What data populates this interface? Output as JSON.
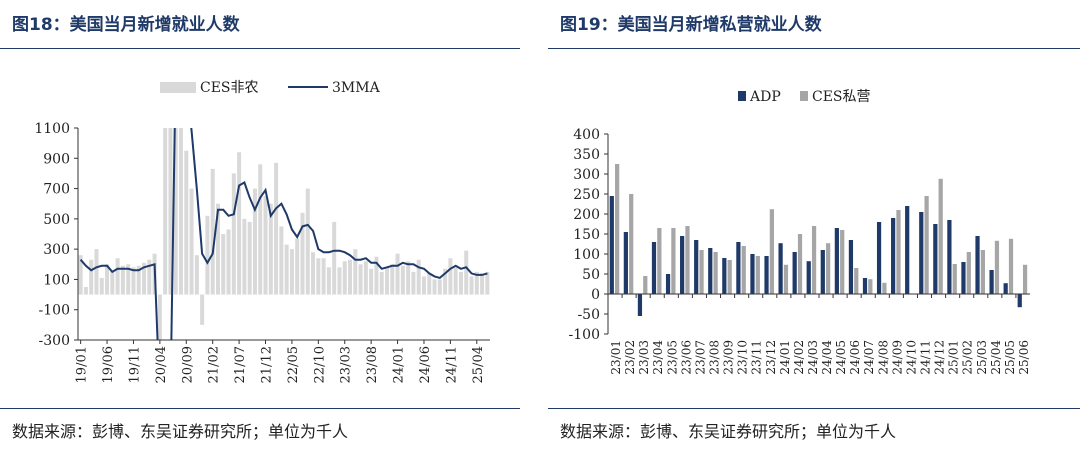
{
  "left": {
    "title": "图18：美国当月新增就业人数",
    "source": "数据来源：彭博、东吴证券研究所；单位为千人",
    "chart_data": {
      "type": "bar",
      "legend_placement": "top",
      "y_range": [
        -300,
        1100
      ],
      "y_ticks": [
        "1100",
        "900",
        "700",
        "500",
        "300",
        "100",
        "-100",
        "-300"
      ],
      "x_tick_labels": [
        "19/01",
        "19/06",
        "19/11",
        "20/04",
        "20/09",
        "21/02",
        "21/07",
        "21/12",
        "22/05",
        "22/10",
        "23/03",
        "23/08",
        "24/01",
        "24/06",
        "24/11",
        "25/04"
      ],
      "categories": [
        "19/01",
        "19/02",
        "19/03",
        "19/04",
        "19/05",
        "19/06",
        "19/07",
        "19/08",
        "19/09",
        "19/10",
        "19/11",
        "19/12",
        "20/01",
        "20/02",
        "20/03",
        "20/04",
        "20/05",
        "20/06",
        "20/07",
        "20/08",
        "20/09",
        "20/10",
        "20/11",
        "20/12",
        "21/01",
        "21/02",
        "21/03",
        "21/04",
        "21/05",
        "21/06",
        "21/07",
        "21/08",
        "21/09",
        "21/10",
        "21/11",
        "21/12",
        "22/01",
        "22/02",
        "22/03",
        "22/04",
        "22/05",
        "22/06",
        "22/07",
        "22/08",
        "22/09",
        "22/10",
        "22/11",
        "22/12",
        "23/01",
        "23/02",
        "23/03",
        "23/04",
        "23/05",
        "23/06",
        "23/07",
        "23/08",
        "23/09",
        "23/10",
        "23/11",
        "23/12",
        "24/01",
        "24/02",
        "24/03",
        "24/04",
        "24/05",
        "24/06",
        "24/07",
        "24/08",
        "24/09",
        "24/10",
        "24/11",
        "24/12",
        "25/01",
        "25/02",
        "25/03",
        "25/04",
        "25/05",
        "25/06"
      ],
      "series": [
        {
          "name": "CES非农",
          "kind": "bar",
          "color": "#d9d9d9",
          "values": [
            260,
            50,
            230,
            300,
            110,
            200,
            160,
            240,
            190,
            200,
            180,
            190,
            210,
            230,
            270,
            -20500,
            2800,
            4600,
            1700,
            1600,
            950,
            700,
            260,
            -200,
            520,
            830,
            600,
            400,
            430,
            800,
            940,
            500,
            480,
            700,
            860,
            650,
            600,
            870,
            450,
            330,
            300,
            370,
            540,
            700,
            280,
            240,
            240,
            180,
            480,
            180,
            220,
            230,
            300,
            200,
            220,
            170,
            250,
            150,
            180,
            200,
            270,
            190,
            220,
            150,
            230,
            120,
            140,
            100,
            100,
            170,
            240,
            180,
            150,
            290,
            120,
            150,
            140,
            150
          ]
        },
        {
          "name": "3MMA",
          "kind": "line",
          "color": "#1f3a68",
          "values": [
            230,
            190,
            160,
            180,
            190,
            190,
            150,
            170,
            170,
            170,
            160,
            160,
            180,
            190,
            200,
            -7400,
            -6300,
            -4400,
            3000,
            2700,
            1420,
            1080,
            700,
            270,
            210,
            270,
            560,
            560,
            520,
            530,
            720,
            740,
            640,
            560,
            640,
            690,
            520,
            570,
            600,
            530,
            430,
            380,
            450,
            460,
            420,
            300,
            280,
            280,
            290,
            290,
            280,
            260,
            230,
            230,
            240,
            210,
            210,
            170,
            180,
            190,
            190,
            210,
            200,
            200,
            180,
            170,
            140,
            120,
            110,
            140,
            170,
            190,
            170,
            180,
            140,
            130,
            130,
            140
          ]
        }
      ]
    }
  },
  "right": {
    "title": "图19：美国当月新增私营就业人数",
    "source": "数据来源：彭博、东吴证券研究所；单位为千人",
    "chart_data": {
      "type": "bar",
      "legend_placement": "top",
      "y_range": [
        -100,
        400
      ],
      "y_ticks": [
        "400",
        "350",
        "300",
        "250",
        "200",
        "150",
        "100",
        "50",
        "0",
        "-50",
        "-100"
      ],
      "categories": [
        "23/01",
        "23/02",
        "23/03",
        "23/04",
        "23/05",
        "23/06",
        "23/07",
        "23/08",
        "23/09",
        "23/10",
        "23/11",
        "23/12",
        "24/01",
        "24/02",
        "24/03",
        "24/04",
        "24/05",
        "24/06",
        "24/07",
        "24/08",
        "24/09",
        "24/10",
        "24/11",
        "24/12",
        "25/01",
        "25/02",
        "25/03",
        "25/04",
        "25/05",
        "25/06"
      ],
      "series": [
        {
          "name": "ADP",
          "color": "#1f3a68",
          "values": [
            245,
            155,
            -55,
            130,
            50,
            145,
            135,
            115,
            90,
            130,
            100,
            95,
            127,
            105,
            82,
            110,
            165,
            135,
            40,
            180,
            190,
            220,
            205,
            175,
            185,
            80,
            145,
            60,
            27,
            -33
          ]
        },
        {
          "name": "CES私营",
          "color": "#a6a6a6",
          "values": [
            325,
            250,
            45,
            165,
            165,
            170,
            110,
            105,
            85,
            120,
            95,
            212,
            73,
            150,
            170,
            127,
            160,
            65,
            37,
            28,
            210,
            0,
            245,
            288,
            75,
            105,
            110,
            133,
            138,
            73
          ]
        }
      ]
    }
  }
}
